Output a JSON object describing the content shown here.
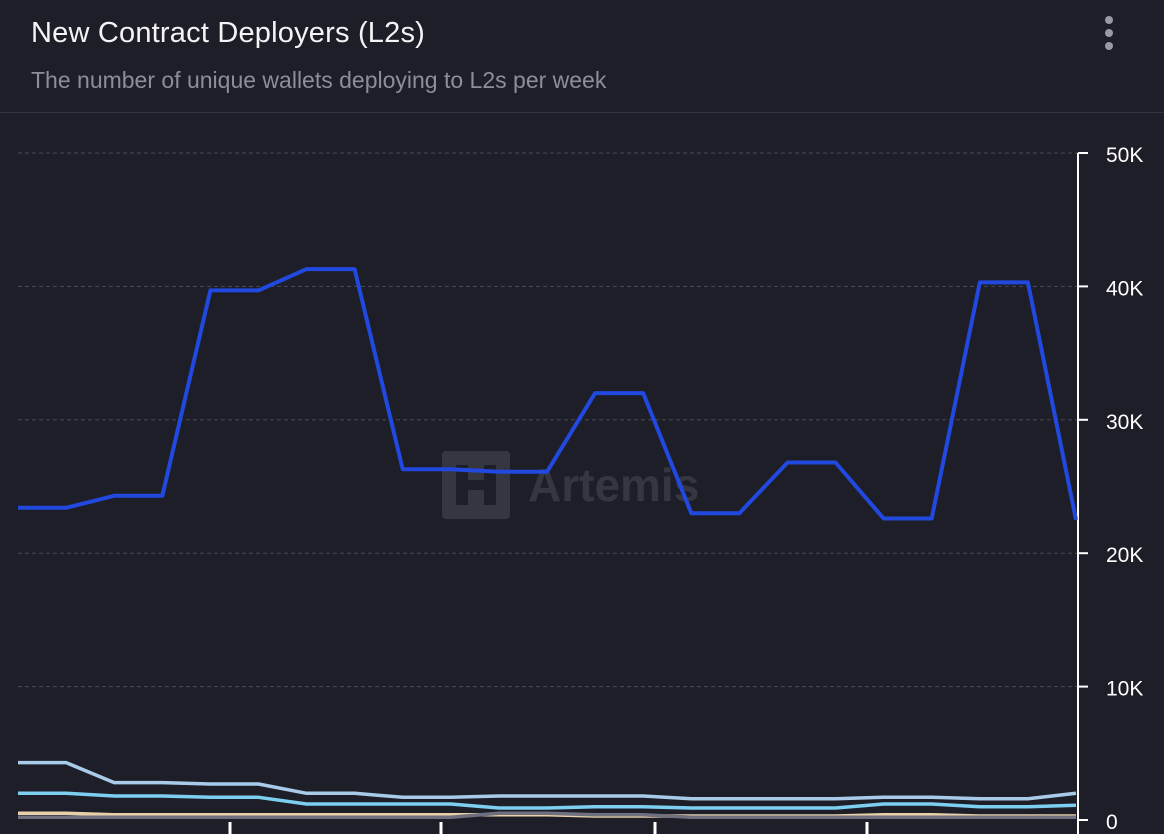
{
  "header": {
    "title": "New Contract Deployers (L2s)",
    "subtitle": "The number of unique wallets deploying to L2s per week"
  },
  "watermark": {
    "text": "Artemis"
  },
  "menu": {
    "icon": "more-vertical-icon"
  },
  "colors": {
    "background": "#1e1e28",
    "grid": "#4a4a58",
    "axis": "#ffffff"
  },
  "chart_data": {
    "type": "line",
    "title": "",
    "xlabel": "",
    "ylabel": "",
    "ylim": [
      0,
      50000
    ],
    "y_ticks": [
      "0",
      "10K",
      "20K",
      "30K",
      "40K",
      "50K"
    ],
    "y_tick_values": [
      0,
      10000,
      20000,
      30000,
      40000,
      50000
    ],
    "x_tick_count": 5,
    "grid": true,
    "axis_side": "right",
    "series": [
      {
        "color": "#2149e0",
        "values": [
          23400,
          23400,
          24300,
          24300,
          39700,
          39700,
          41300,
          41300,
          26300,
          26300,
          26100,
          26100,
          32000,
          32000,
          23000,
          23000,
          26800,
          26800,
          22600,
          22600,
          40300,
          40300,
          22500
        ]
      },
      {
        "color": "#a9cbea",
        "values": [
          4300,
          4300,
          2800,
          2800,
          2700,
          2700,
          2000,
          2000,
          1700,
          1700,
          1800,
          1800,
          1800,
          1800,
          1600,
          1600,
          1600,
          1600,
          1700,
          1700,
          1600,
          1600,
          2000
        ]
      },
      {
        "color": "#7ccff0",
        "values": [
          2000,
          2000,
          1800,
          1800,
          1700,
          1700,
          1200,
          1200,
          1200,
          1200,
          900,
          900,
          1000,
          1000,
          900,
          900,
          900,
          900,
          1200,
          1200,
          1000,
          1000,
          1100
        ]
      },
      {
        "color": "#e8d0a8",
        "values": [
          500,
          500,
          400,
          400,
          400,
          400,
          400,
          400,
          400,
          400,
          400,
          400,
          300,
          300,
          300,
          300,
          300,
          300,
          400,
          400,
          300,
          300,
          300
        ]
      },
      {
        "color": "#6f6f80",
        "values": [
          200,
          200,
          200,
          200,
          200,
          200,
          200,
          200,
          200,
          200,
          500,
          500,
          400,
          400,
          200,
          200,
          200,
          200,
          200,
          200,
          200,
          200,
          200
        ]
      }
    ]
  }
}
